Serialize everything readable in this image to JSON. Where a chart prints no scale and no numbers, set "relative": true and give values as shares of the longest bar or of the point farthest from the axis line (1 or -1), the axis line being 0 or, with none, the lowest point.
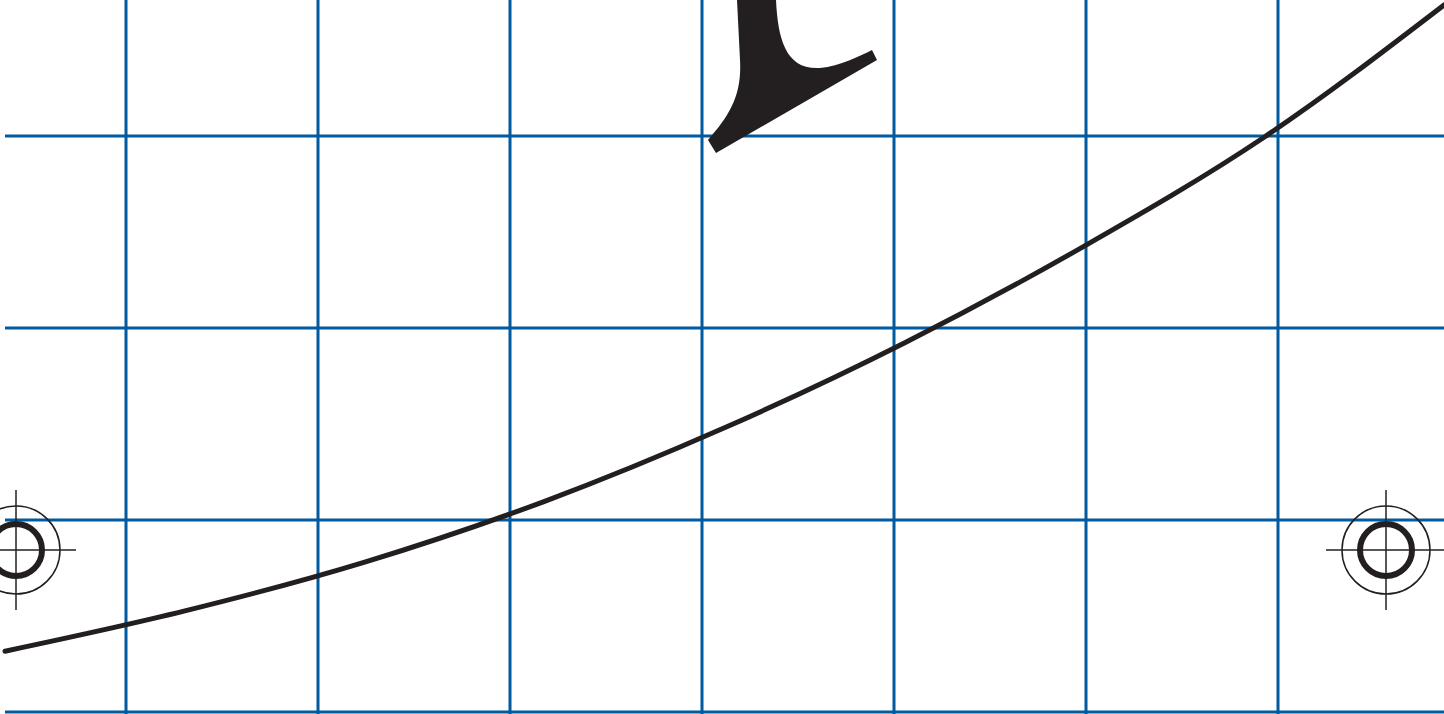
{
  "chart_data": {
    "type": "line",
    "relative": true,
    "grid": "x",
    "ref_lines": [
      {
        "axis": "y",
        "value": 0,
        "color": "#005aa0"
      },
      {
        "axis": "y",
        "value": 0.2716,
        "color": "#005aa0"
      },
      {
        "axis": "y",
        "value": 0.5431,
        "color": "#005aa0"
      },
      {
        "axis": "y",
        "value": 0.8147,
        "color": "#005aa0"
      }
    ],
    "categories": [
      null,
      null,
      null,
      null,
      null,
      null,
      null,
      null,
      null
    ],
    "series": [
      {
        "color": "#231f20",
        "values": [
          0.086,
          0.143,
          0.212,
          0.298,
          0.402,
          0.522,
          0.659,
          0.813,
          1
        ]
      }
    ]
  }
}
